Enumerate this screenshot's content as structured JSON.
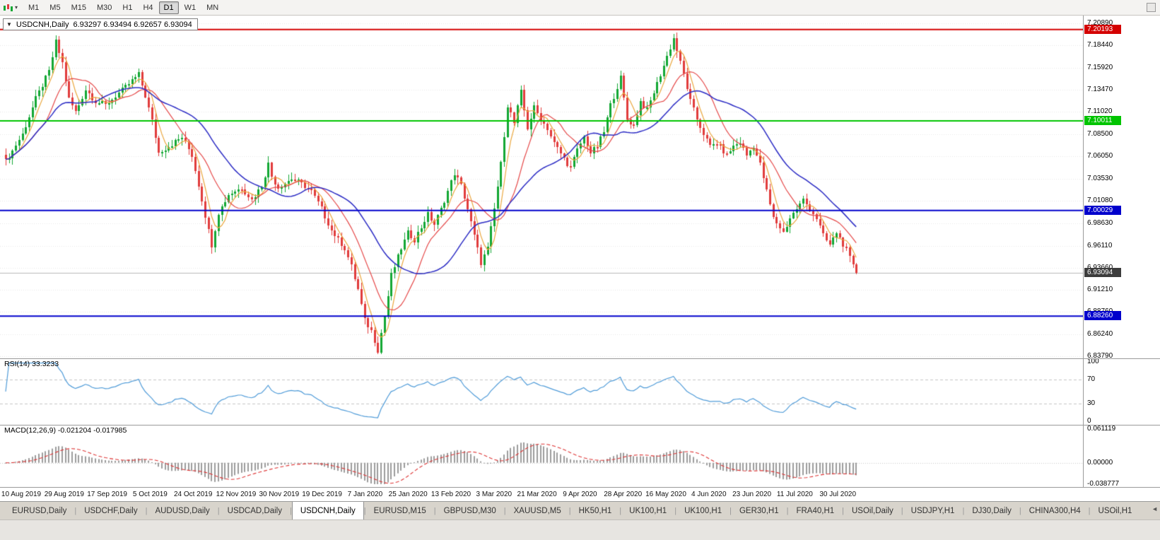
{
  "toolbar": {
    "timeframes": [
      "M1",
      "M5",
      "M15",
      "M30",
      "H1",
      "H4",
      "D1",
      "W1",
      "MN"
    ],
    "active_timeframe": "D1"
  },
  "icons": {
    "legend_caret": "▼",
    "toolbar_caret": "▾",
    "tab_scroll_left": "◄"
  },
  "chart": {
    "symbol_label": "USDCNH,Daily",
    "ohlc_text": "6.93297 6.93494 6.92657 6.93094",
    "price_axis": [
      "7.20890",
      "7.18440",
      "7.15920",
      "7.13470",
      "7.11020",
      "7.08500",
      "7.06050",
      "7.03530",
      "7.01080",
      "6.98630",
      "6.96110",
      "6.93660",
      "6.91210",
      "6.88760",
      "6.86240",
      "6.83790"
    ],
    "hlines": [
      {
        "label": "7.20193",
        "price": 7.20193,
        "color": "#d40000"
      },
      {
        "label": "7.10011",
        "price": 7.10011,
        "color": "#00c400"
      },
      {
        "label": "7.00029",
        "price": 7.00029,
        "color": "#0000cc"
      },
      {
        "label": "6.88260",
        "price": 6.8826,
        "color": "#0000cc"
      }
    ],
    "current_price": {
      "label": "6.93094",
      "value": 6.93094,
      "color": "#3c3c3c"
    }
  },
  "rsi": {
    "label": "RSI(14) 33.3233",
    "axis": [
      "100",
      "70",
      "30",
      "0"
    ]
  },
  "macd": {
    "label": "MACD(12,26,9) -0.021204 -0.017985",
    "axis": [
      "0.061119",
      "0.00000",
      "-0.038777"
    ]
  },
  "date_axis": [
    "10 Aug 2019",
    "29 Aug 2019",
    "17 Sep 2019",
    "5 Oct 2019",
    "24 Oct 2019",
    "12 Nov 2019",
    "30 Nov 2019",
    "19 Dec 2019",
    "7 Jan 2020",
    "25 Jan 2020",
    "13 Feb 2020",
    "3 Mar 2020",
    "21 Mar 2020",
    "9 Apr 2020",
    "28 Apr 2020",
    "16 May 2020",
    "4 Jun 2020",
    "23 Jun 2020",
    "11 Jul 2020",
    "30 Jul 2020"
  ],
  "tabs": {
    "labels": [
      "EURUSD,Daily",
      "USDCHF,Daily",
      "AUDUSD,Daily",
      "USDCAD,Daily",
      "USDCNH,Daily",
      "EURUSD,M15",
      "GBPUSD,M30",
      "XAUUSD,M5",
      "HK50,H1",
      "UK100,H1",
      "UK100,H1",
      "GER30,H1",
      "FRA40,H1",
      "USOil,Daily",
      "USDJPY,H1",
      "DJ30,Daily",
      "CHINA300,H4",
      "USOil,H1"
    ],
    "active": "USDCNH,Daily",
    "separator": "|"
  },
  "chart_data": {
    "type": "candlestick",
    "symbol": "USDCNH",
    "timeframe": "Daily",
    "title": "USDCNH,Daily",
    "ohlc_current": {
      "open": 6.93297,
      "high": 6.93494,
      "low": 6.92657,
      "close": 6.93094
    },
    "y_range": [
      6.8379,
      7.2089
    ],
    "num_candles": 257,
    "close_anchors": [
      [
        0,
        7.055
      ],
      [
        5,
        7.085
      ],
      [
        9,
        7.125
      ],
      [
        13,
        7.155
      ],
      [
        15,
        7.188
      ],
      [
        17,
        7.165
      ],
      [
        19,
        7.125
      ],
      [
        21,
        7.11
      ],
      [
        24,
        7.135
      ],
      [
        27,
        7.122
      ],
      [
        30,
        7.118
      ],
      [
        33,
        7.128
      ],
      [
        36,
        7.138
      ],
      [
        40,
        7.152
      ],
      [
        42,
        7.128
      ],
      [
        44,
        7.1
      ],
      [
        46,
        7.065
      ],
      [
        49,
        7.072
      ],
      [
        53,
        7.082
      ],
      [
        56,
        7.062
      ],
      [
        59,
        7.012
      ],
      [
        61,
        6.978
      ],
      [
        62,
        6.962
      ],
      [
        64,
        6.998
      ],
      [
        67,
        7.018
      ],
      [
        71,
        7.026
      ],
      [
        74,
        7.012
      ],
      [
        77,
        7.028
      ],
      [
        79,
        7.052
      ],
      [
        80,
        7.038
      ],
      [
        82,
        7.026
      ],
      [
        86,
        7.036
      ],
      [
        89,
        7.03
      ],
      [
        92,
        7.022
      ],
      [
        95,
        7.002
      ],
      [
        98,
        6.978
      ],
      [
        102,
        6.958
      ],
      [
        104,
        6.938
      ],
      [
        106,
        6.912
      ],
      [
        108,
        6.878
      ],
      [
        110,
        6.866
      ],
      [
        112,
        6.845
      ],
      [
        114,
        6.882
      ],
      [
        116,
        6.928
      ],
      [
        119,
        6.958
      ],
      [
        121,
        6.975
      ],
      [
        123,
        6.968
      ],
      [
        125,
        6.982
      ],
      [
        127,
        6.996
      ],
      [
        129,
        6.985
      ],
      [
        131,
        7.002
      ],
      [
        135,
        7.042
      ],
      [
        137,
        7.028
      ],
      [
        139,
        7.002
      ],
      [
        141,
        6.972
      ],
      [
        143,
        6.942
      ],
      [
        145,
        6.958
      ],
      [
        147,
        7.002
      ],
      [
        149,
        7.052
      ],
      [
        151,
        7.118
      ],
      [
        153,
        7.098
      ],
      [
        155,
        7.132
      ],
      [
        157,
        7.092
      ],
      [
        159,
        7.115
      ],
      [
        161,
        7.102
      ],
      [
        163,
        7.092
      ],
      [
        165,
        7.075
      ],
      [
        168,
        7.058
      ],
      [
        170,
        7.048
      ],
      [
        172,
        7.068
      ],
      [
        174,
        7.082
      ],
      [
        176,
        7.065
      ],
      [
        178,
        7.072
      ],
      [
        180,
        7.088
      ],
      [
        182,
        7.118
      ],
      [
        185,
        7.148
      ],
      [
        187,
        7.102
      ],
      [
        189,
        7.095
      ],
      [
        191,
        7.122
      ],
      [
        193,
        7.112
      ],
      [
        195,
        7.132
      ],
      [
        197,
        7.152
      ],
      [
        199,
        7.172
      ],
      [
        201,
        7.192
      ],
      [
        204,
        7.152
      ],
      [
        206,
        7.122
      ],
      [
        208,
        7.102
      ],
      [
        210,
        7.086
      ],
      [
        212,
        7.072
      ],
      [
        214,
        7.076
      ],
      [
        217,
        7.062
      ],
      [
        219,
        7.072
      ],
      [
        221,
        7.076
      ],
      [
        223,
        7.062
      ],
      [
        225,
        7.072
      ],
      [
        227,
        7.052
      ],
      [
        229,
        7.022
      ],
      [
        231,
        6.992
      ],
      [
        234,
        6.976
      ],
      [
        236,
        6.992
      ],
      [
        238,
        7.002
      ],
      [
        240,
        7.012
      ],
      [
        242,
        7.002
      ],
      [
        244,
        6.992
      ],
      [
        246,
        6.972
      ],
      [
        248,
        6.962
      ],
      [
        250,
        6.976
      ],
      [
        253,
        6.956
      ],
      [
        255,
        6.938
      ],
      [
        256,
        6.931
      ]
    ],
    "colors": {
      "up": "#12a733",
      "down": "#e13b3b",
      "grid": "#e7e7e7",
      "current_line": "#b9b9b9"
    },
    "indicators": {
      "ma_fast": {
        "period": 5,
        "color": "#eaa63c"
      },
      "ma_mid": {
        "period": 13,
        "color": "#e54848"
      },
      "ma_slow": {
        "period": 28,
        "color": "#2b2bc4"
      },
      "rsi": {
        "period": 14,
        "current": 33.3233,
        "levels": [
          70,
          30
        ],
        "range": [
          0,
          100
        ],
        "color": "#4f9bd8"
      },
      "macd": {
        "fast": 12,
        "slow": 26,
        "signal": 9,
        "current_main": -0.021204,
        "current_signal": -0.017985,
        "range": [
          -0.038777,
          0.061119
        ],
        "hist_color": "#9c9c9c",
        "signal_color": "#dd3333"
      }
    }
  }
}
